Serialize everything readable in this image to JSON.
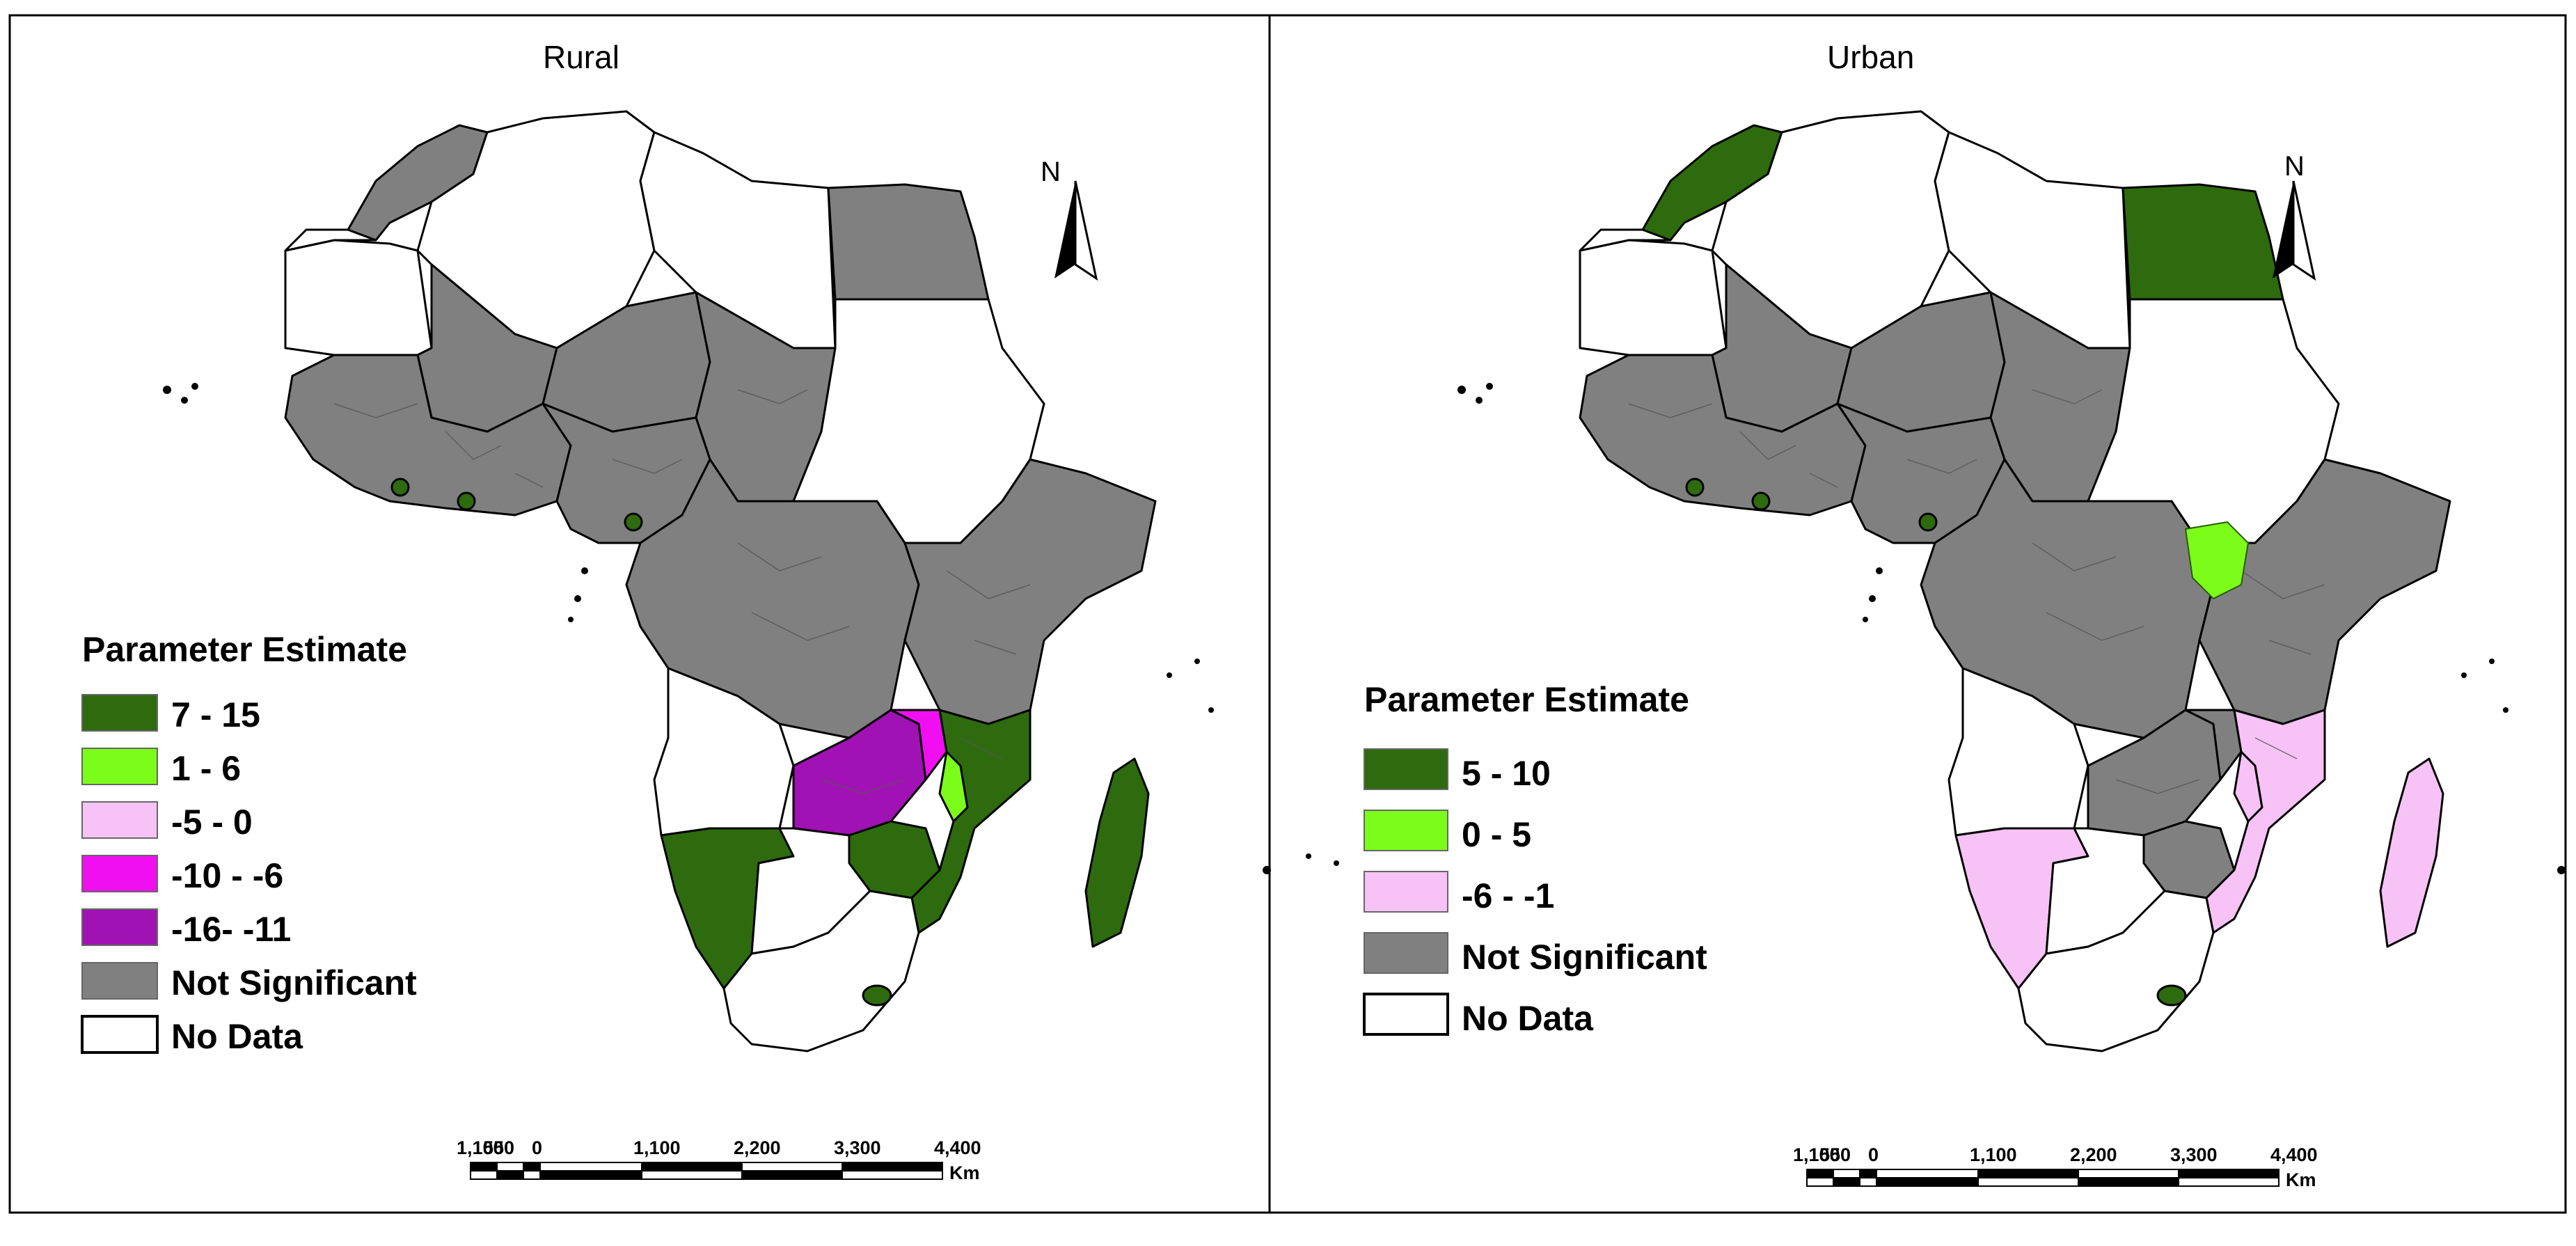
{
  "panels": [
    {
      "title": "Rural",
      "legend": {
        "heading": "Parameter Estimate",
        "items": [
          {
            "label": "7 - 15",
            "color": "#2e6b0f"
          },
          {
            "label": "1 - 6",
            "color": "#7cfc1a"
          },
          {
            "label": "-5 - 0",
            "color": "#f7c2f5"
          },
          {
            "label": "-10 - -6",
            "color": "#f00ff0"
          },
          {
            "label": "-16- -11",
            "color": "#a012b4"
          },
          {
            "label": "Not Significant",
            "color": "#808080"
          },
          {
            "label": "No Data",
            "color": "#ffffff"
          }
        ]
      },
      "scale_bar": {
        "ticks": [
          "1,100",
          "550",
          "0",
          "1,100",
          "2,200",
          "3,300",
          "4,400"
        ],
        "unit": "Km"
      },
      "north_label": "N"
    },
    {
      "title": "Urban",
      "legend": {
        "heading": "Parameter Estimate",
        "items": [
          {
            "label": "5 - 10",
            "color": "#2e6b0f"
          },
          {
            "label": "0 - 5",
            "color": "#7cfc1a"
          },
          {
            "label": "-6 - -1",
            "color": "#f7c2f5"
          },
          {
            "label": "Not Significant",
            "color": "#808080"
          },
          {
            "label": "No Data",
            "color": "#ffffff"
          }
        ]
      },
      "scale_bar": {
        "ticks": [
          "1,100",
          "550",
          "0",
          "1,100",
          "2,200",
          "3,300",
          "4,400"
        ],
        "unit": "Km"
      },
      "north_label": "N"
    }
  ],
  "map_colors": {
    "dark_green": "#2e6b0f",
    "light_green": "#7cfc1a",
    "light_pink": "#f7c2f5",
    "magenta": "#f00ff0",
    "purple": "#a012b4",
    "grey": "#808080",
    "no_data": "#ffffff"
  },
  "region_fills": {
    "rural": {
      "morocco": "grey",
      "western_sahara": "no_data",
      "algeria": "no_data",
      "libya": "no_data",
      "egypt": "grey",
      "mauritania": "no_data",
      "mali": "grey",
      "niger": "grey",
      "chad": "grey",
      "sudan": "no_data",
      "west_africa": "grey",
      "nigeria": "grey",
      "central_africa": "grey",
      "east_africa": "grey",
      "angola": "no_data",
      "zambia": "purple",
      "zambia_east": "magenta",
      "malawi": "light_green",
      "zimbabwe": "dark_green",
      "mozambique": "dark_green",
      "namibia": "dark_green",
      "botswana": "no_data",
      "south_africa": "no_data",
      "madagascar": "dark_green",
      "spot_1": "dark_green",
      "spot_2": "dark_green",
      "spot_3": "dark_green"
    },
    "urban": {
      "morocco": "dark_green",
      "western_sahara": "no_data",
      "algeria": "no_data",
      "libya": "no_data",
      "egypt": "dark_green",
      "mauritania": "no_data",
      "mali": "grey",
      "niger": "grey",
      "chad": "grey",
      "sudan": "no_data",
      "west_africa": "grey",
      "nigeria": "grey",
      "central_africa": "grey",
      "east_africa": "grey",
      "angola": "no_data",
      "zambia": "grey",
      "zambia_east": "grey",
      "malawi": "light_pink",
      "zimbabwe": "grey",
      "mozambique": "light_pink",
      "namibia": "light_pink",
      "botswana": "no_data",
      "south_africa": "no_data",
      "madagascar": "light_pink",
      "spot_1": "dark_green",
      "spot_2": "dark_green",
      "spot_3": "dark_green",
      "drc_patch": "light_green"
    }
  }
}
